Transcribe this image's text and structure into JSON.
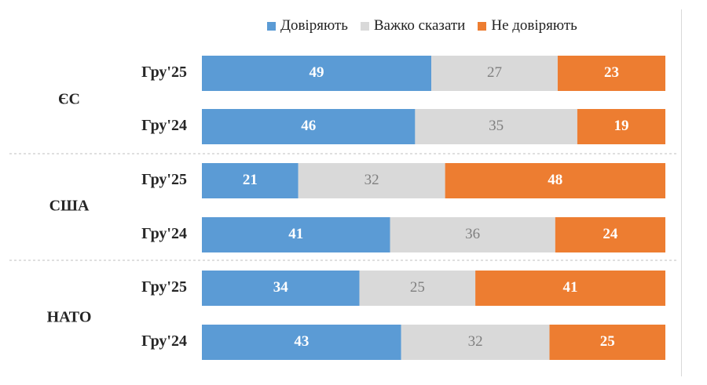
{
  "chart_data": {
    "type": "bar",
    "orientation": "horizontal",
    "stacked": "100%",
    "legend": "top",
    "series": [
      {
        "name": "Довіряють",
        "color": "#5b9bd5"
      },
      {
        "name": "Важко сказати",
        "color": "#d9d9d9"
      },
      {
        "name": "Не  довіряють",
        "color": "#ed7d31"
      }
    ],
    "groups": [
      {
        "label": "ЄС",
        "rows": [
          {
            "label": "Гру'25",
            "values": [
              49,
              27,
              23
            ]
          },
          {
            "label": "Гру'24",
            "values": [
              46,
              35,
              19
            ]
          }
        ]
      },
      {
        "label": "США",
        "rows": [
          {
            "label": "Гру'25",
            "values": [
              21,
              32,
              48
            ]
          },
          {
            "label": "Гру'24",
            "values": [
              41,
              36,
              24
            ]
          }
        ]
      },
      {
        "label": "НАТО",
        "rows": [
          {
            "label": "Гру'25",
            "values": [
              34,
              25,
              41
            ]
          },
          {
            "label": "Гру'24",
            "values": [
              43,
              32,
              25
            ]
          }
        ]
      }
    ]
  }
}
